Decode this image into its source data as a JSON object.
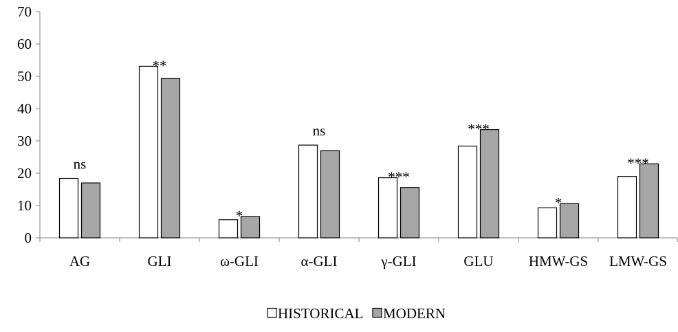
{
  "chart_data": {
    "type": "bar",
    "title": "",
    "xlabel": "",
    "ylabel": "",
    "ylim": [
      0,
      70
    ],
    "yticks": [
      0,
      10,
      20,
      30,
      40,
      50,
      60,
      70
    ],
    "categories": [
      "AG",
      "GLI",
      "ω-GLI",
      "α-GLI",
      "γ-GLI",
      "GLU",
      "HMW-GS",
      "LMW-GS"
    ],
    "series": [
      {
        "name": "HISTORICAL",
        "color": "#ffffff",
        "values": [
          18.4,
          53.1,
          5.6,
          28.7,
          18.6,
          28.4,
          9.3,
          19.0
        ]
      },
      {
        "name": "MODERN",
        "color": "#a6a6a6",
        "values": [
          17.0,
          49.3,
          6.6,
          27.0,
          15.6,
          33.5,
          10.6,
          22.9
        ]
      }
    ],
    "significance": [
      "ns",
      "**",
      "*",
      "ns",
      "***",
      "***",
      "*",
      "***"
    ],
    "legend_position": "bottom",
    "grid": false
  }
}
